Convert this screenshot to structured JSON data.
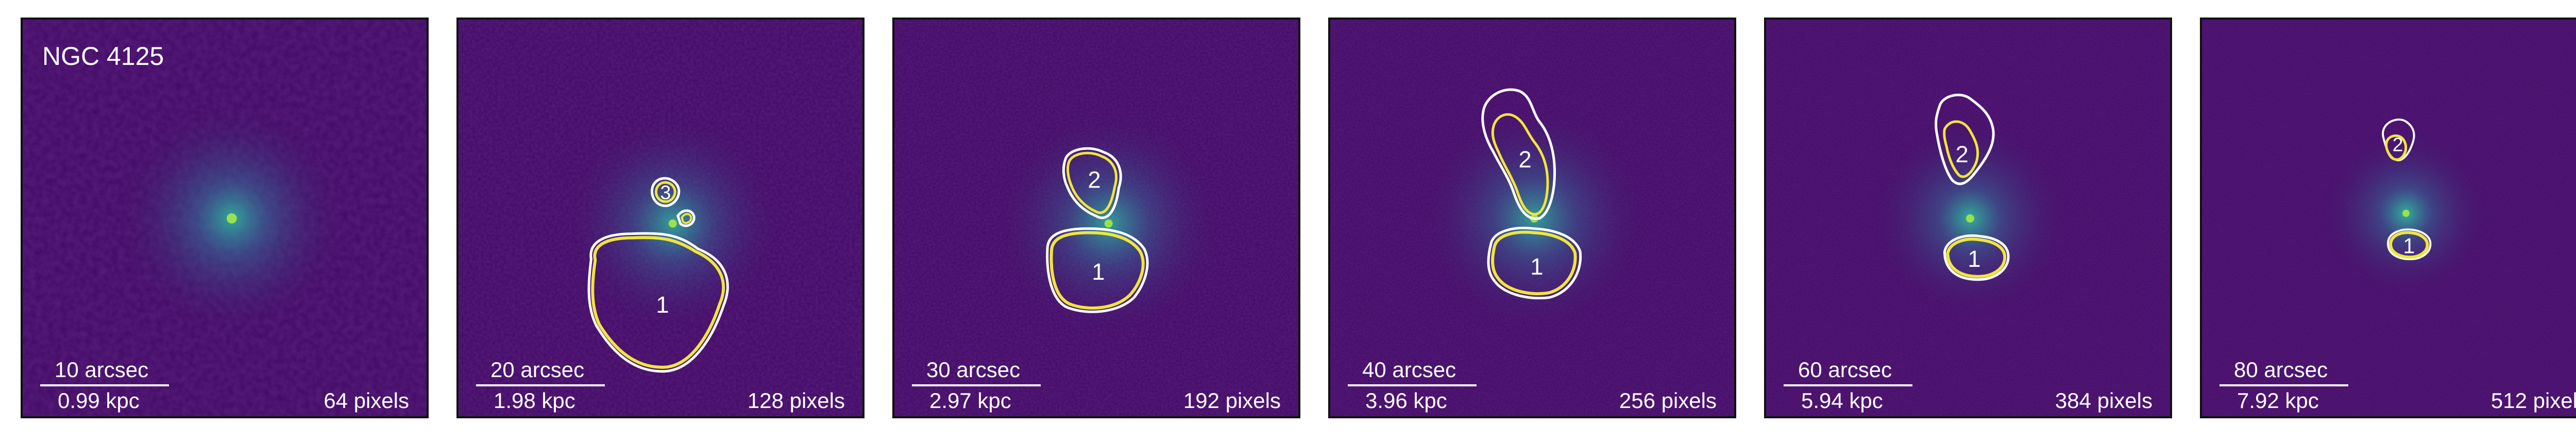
{
  "galaxy": "NGC 4125",
  "colors": {
    "background": "#3f0a63",
    "contour_white": "#ffffff",
    "contour_yellow": "#f2e53a",
    "core": "#7ee05a"
  },
  "panels": [
    {
      "arcsec": "10 arcsec",
      "kpc": "0.99 kpc",
      "pixels": "64 pixels",
      "regions": []
    },
    {
      "arcsec": "20 arcsec",
      "kpc": "1.98 kpc",
      "pixels": "128 pixels",
      "regions": [
        "1",
        "3"
      ]
    },
    {
      "arcsec": "30 arcsec",
      "kpc": "2.97 kpc",
      "pixels": "192 pixels",
      "regions": [
        "1",
        "2"
      ]
    },
    {
      "arcsec": "40 arcsec",
      "kpc": "3.96 kpc",
      "pixels": "256 pixels",
      "regions": [
        "1",
        "2"
      ]
    },
    {
      "arcsec": "60 arcsec",
      "kpc": "5.94 kpc",
      "pixels": "384 pixels",
      "regions": [
        "1",
        "2"
      ]
    },
    {
      "arcsec": "80 arcsec",
      "kpc": "7.92 kpc",
      "pixels": "512 pixels",
      "regions": [
        "1",
        "2"
      ]
    }
  ]
}
